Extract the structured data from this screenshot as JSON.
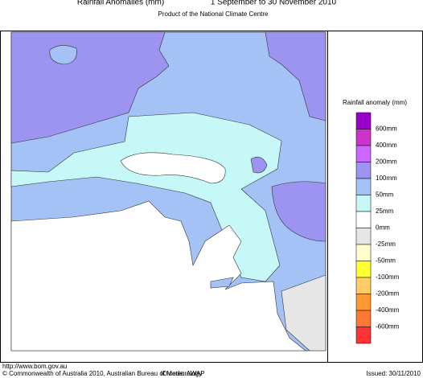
{
  "header": {
    "title": "Rainfall Anomalies (mm)",
    "period": "1 September to 30 November 2010",
    "subtitle": "Product of the National Climate Centre"
  },
  "legend": {
    "title": "Rainfall anomaly (mm)",
    "colors": [
      "#9900cc",
      "#cc33cc",
      "#cc66ff",
      "#9c94f0",
      "#a4c2f6",
      "#c6f8f8",
      "#ffffff",
      "#e6e6e6",
      "#ffffcc",
      "#ffff33",
      "#ffcc66",
      "#ff9933",
      "#ff7733",
      "#ff3333"
    ],
    "labels": [
      "600mm",
      "400mm",
      "200mm",
      "100mm",
      "50mm",
      "25mm",
      "0mm",
      "-25mm",
      "-50mm",
      "-100mm",
      "-200mm",
      "-400mm",
      "-600mm"
    ]
  },
  "footer": {
    "url": "http://www.bom.gov.au",
    "copyright": "© Commonwealth of Australia 2010, Australian Bureau of Meteorology",
    "id_code": "ID code: AWAP",
    "issued": "Issued: 30/11/2010"
  }
}
